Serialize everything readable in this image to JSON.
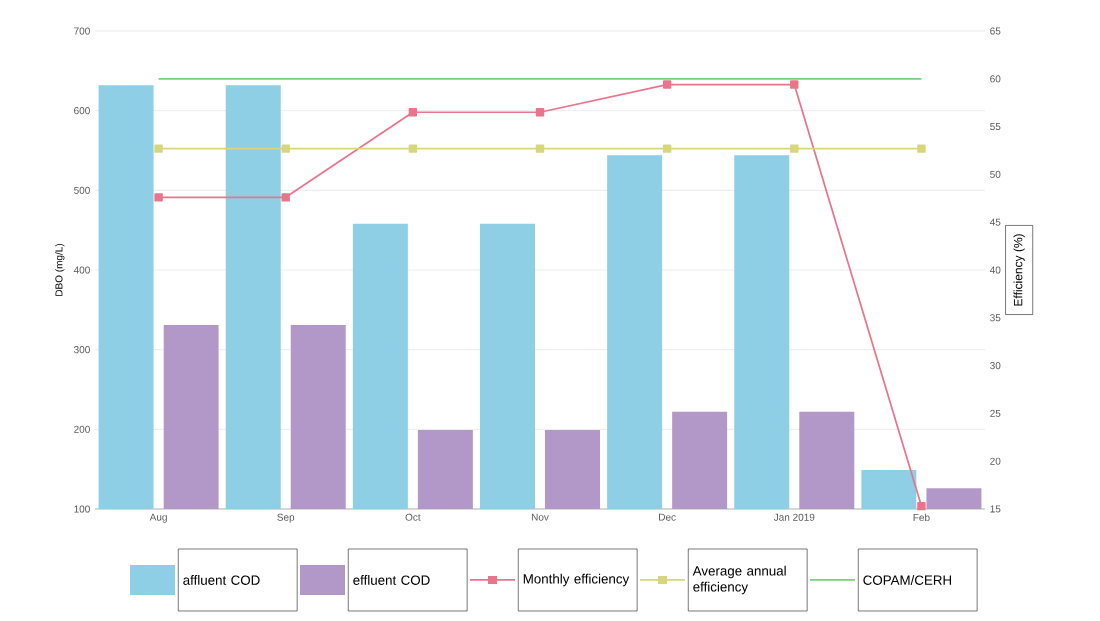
{
  "chart_data": {
    "type": "bar",
    "ylabel": "DBO (mg/L)",
    "y2label": "Efficiency (%)",
    "categories": [
      "Aug",
      "Sep",
      "Oct",
      "Nov",
      "Dec",
      "Jan 2019",
      "Feb"
    ],
    "series": [
      {
        "name": "affluent COD",
        "color": "#8ecfe6",
        "values": [
          632,
          632,
          458,
          458,
          544,
          544,
          149
        ]
      },
      {
        "name": "effluent COD",
        "color": "#b298c9",
        "values": [
          331,
          331,
          199,
          199,
          222,
          222,
          126
        ]
      },
      {
        "name": "Monthly efficiency",
        "type": "line",
        "axis": "y2",
        "color": "#e8758b",
        "marker": "square",
        "values": [
          47.6,
          47.6,
          56.5,
          56.5,
          59.4,
          59.4,
          15.3
        ]
      },
      {
        "name": "Average annual efficiency",
        "type": "line",
        "axis": "y2",
        "color": "#d6d67a",
        "marker": "square",
        "values": [
          52.7,
          52.7,
          52.7,
          52.7,
          52.7,
          52.7,
          52.7
        ]
      },
      {
        "name": "COPAM/CERH",
        "type": "line",
        "axis": "y2",
        "color": "#7ccf7c",
        "marker": "none",
        "values": [
          60,
          60,
          60,
          60,
          60,
          60,
          60
        ]
      }
    ],
    "ylim": [
      100,
      700
    ],
    "yticks": [
      100,
      200,
      300,
      400,
      500,
      600,
      700
    ],
    "y2lim": [
      15,
      65
    ],
    "y2ticks": [
      15,
      20,
      25,
      30,
      35,
      40,
      45,
      50,
      55,
      60,
      65
    ],
    "grid": "y",
    "legend": "bottom"
  }
}
